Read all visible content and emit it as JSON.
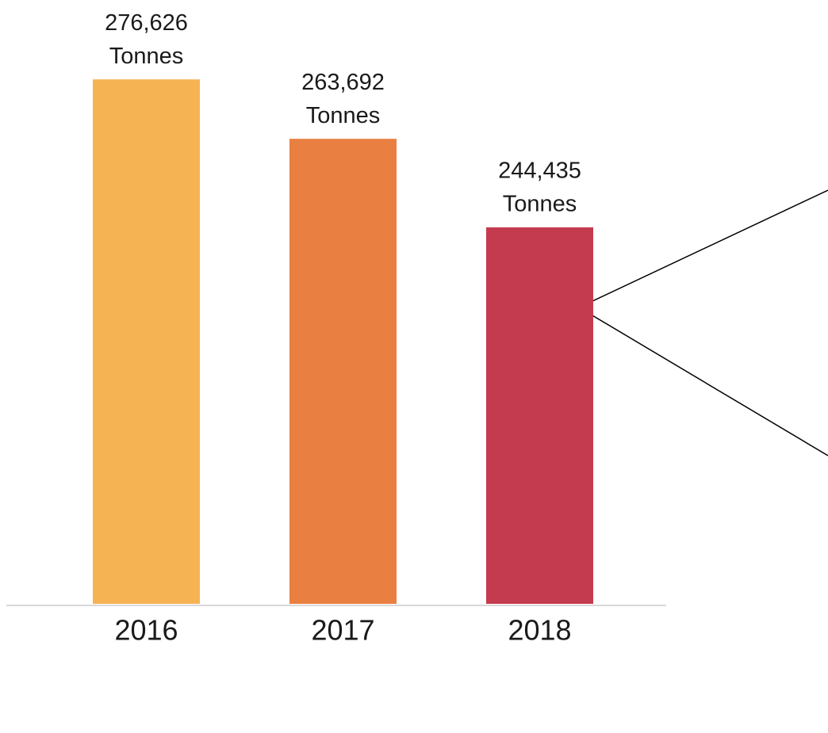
{
  "chart_data": {
    "type": "bar",
    "categories": [
      "2016",
      "2017",
      "2018"
    ],
    "values": [
      276626,
      263692,
      244435
    ],
    "value_labels": [
      "276,626",
      "263,692",
      "244,435"
    ],
    "unit": "Tonnes",
    "colors": [
      "#f6b353",
      "#e97f40",
      "#c43a4f"
    ],
    "ylim": [
      162500,
      287000
    ]
  }
}
